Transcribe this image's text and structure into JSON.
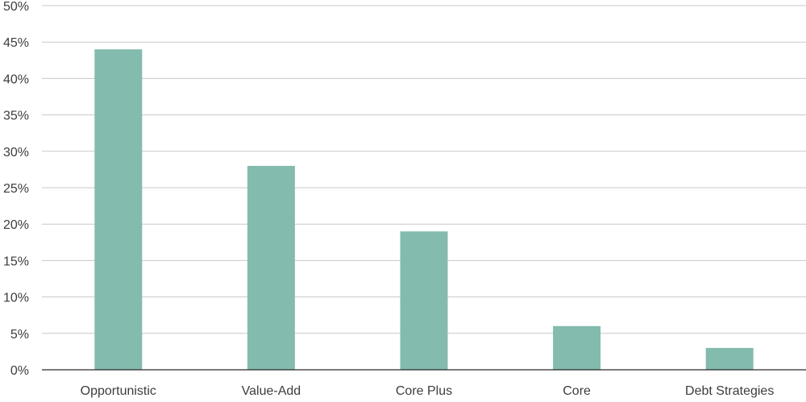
{
  "chart_data": {
    "type": "bar",
    "categories": [
      "Opportunistic",
      "Value-Add",
      "Core Plus",
      "Core",
      "Debt Strategies"
    ],
    "values": [
      44,
      28,
      19,
      6,
      3
    ],
    "y_ticks": [
      "0%",
      "5%",
      "10%",
      "15%",
      "20%",
      "25%",
      "30%",
      "35%",
      "40%",
      "45%",
      "50%"
    ],
    "ylim": [
      0,
      50
    ],
    "ystep": 5,
    "grid": true,
    "legend": "none",
    "title": "",
    "xlabel": "",
    "ylabel": ""
  },
  "colors": {
    "bar": "#83bbae",
    "grid": "#c8c8c8",
    "axis": "#2b2b2b",
    "text": "#3d3d3d"
  }
}
